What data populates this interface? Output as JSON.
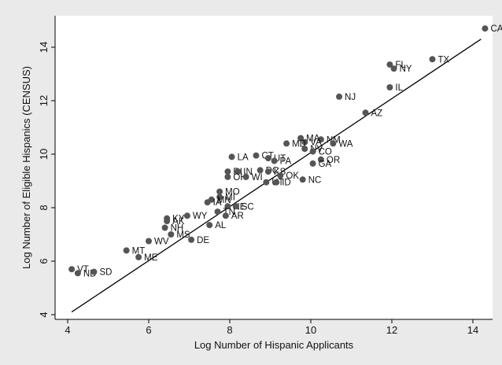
{
  "chart_data": {
    "type": "scatter",
    "xlabel": "Log Number of Hispanic Applicants",
    "ylabel": "Log Number of Eligible Hispanics (CENSUS)",
    "xlim": [
      3.8,
      14.5
    ],
    "ylim": [
      3.6,
      14.9
    ],
    "xticks": [
      4,
      6,
      8,
      10,
      12,
      14
    ],
    "yticks": [
      4,
      6,
      8,
      10,
      12,
      14
    ],
    "grid": false,
    "marker_color": "#555555",
    "fit_line": {
      "x": [
        4.1,
        14.2
      ],
      "y": [
        4.1,
        14.3
      ]
    },
    "points": [
      {
        "label": "CA",
        "x": 14.3,
        "y": 14.7
      },
      {
        "label": "TX",
        "x": 13.0,
        "y": 13.55
      },
      {
        "label": "FL",
        "x": 11.95,
        "y": 13.35
      },
      {
        "label": "NY",
        "x": 12.05,
        "y": 13.2
      },
      {
        "label": "IL",
        "x": 11.95,
        "y": 12.5
      },
      {
        "label": "NJ",
        "x": 10.7,
        "y": 12.15
      },
      {
        "label": "AZ",
        "x": 11.35,
        "y": 11.55
      },
      {
        "label": "MA",
        "x": 9.75,
        "y": 10.6
      },
      {
        "label": "NM",
        "x": 10.25,
        "y": 10.55
      },
      {
        "label": "VA",
        "x": 9.85,
        "y": 10.45
      },
      {
        "label": "MD",
        "x": 9.4,
        "y": 10.4
      },
      {
        "label": "WA",
        "x": 10.55,
        "y": 10.4
      },
      {
        "label": "NV",
        "x": 9.85,
        "y": 10.2
      },
      {
        "label": "CO",
        "x": 10.05,
        "y": 10.1
      },
      {
        "label": "CT",
        "x": 8.65,
        "y": 9.95
      },
      {
        "label": "LA",
        "x": 8.05,
        "y": 9.9
      },
      {
        "label": "UT",
        "x": 8.95,
        "y": 9.85
      },
      {
        "label": "PA",
        "x": 9.1,
        "y": 9.75
      },
      {
        "label": "OR",
        "x": 10.25,
        "y": 9.8
      },
      {
        "label": "GA",
        "x": 10.05,
        "y": 9.65
      },
      {
        "label": "DC",
        "x": 8.75,
        "y": 9.4
      },
      {
        "label": "KS",
        "x": 8.95,
        "y": 9.35
      },
      {
        "label": "RI",
        "x": 7.95,
        "y": 9.35
      },
      {
        "label": "IN",
        "x": 8.2,
        "y": 9.35
      },
      {
        "label": "OK",
        "x": 9.25,
        "y": 9.2
      },
      {
        "label": "OH",
        "x": 7.95,
        "y": 9.15
      },
      {
        "label": "WI",
        "x": 8.4,
        "y": 9.15
      },
      {
        "label": "UT",
        "x": 8.9,
        "y": 8.95
      },
      {
        "label": "ID",
        "x": 9.15,
        "y": 8.95
      },
      {
        "label": "NC",
        "x": 9.8,
        "y": 9.05
      },
      {
        "label": "MO",
        "x": 7.75,
        "y": 8.6
      },
      {
        "label": "MI",
        "x": 7.75,
        "y": 8.4
      },
      {
        "label": "MN",
        "x": 7.55,
        "y": 8.3
      },
      {
        "label": "IA",
        "x": 7.45,
        "y": 8.2
      },
      {
        "label": "NE",
        "x": 7.95,
        "y": 8.05
      },
      {
        "label": "SC",
        "x": 8.15,
        "y": 8.05
      },
      {
        "label": "TN",
        "x": 7.7,
        "y": 7.85
      },
      {
        "label": "AR",
        "x": 7.9,
        "y": 7.7
      },
      {
        "label": "WY",
        "x": 6.95,
        "y": 7.7
      },
      {
        "label": "KY",
        "x": 6.45,
        "y": 7.6
      },
      {
        "label": "AK",
        "x": 6.45,
        "y": 7.5
      },
      {
        "label": "NH",
        "x": 6.4,
        "y": 7.25
      },
      {
        "label": "AL",
        "x": 7.5,
        "y": 7.35
      },
      {
        "label": "MS",
        "x": 6.55,
        "y": 7.0
      },
      {
        "label": "DE",
        "x": 7.05,
        "y": 6.8
      },
      {
        "label": "WV",
        "x": 6.0,
        "y": 6.75
      },
      {
        "label": "MT",
        "x": 5.45,
        "y": 6.4
      },
      {
        "label": "ME",
        "x": 5.75,
        "y": 6.15
      },
      {
        "label": "VT",
        "x": 4.1,
        "y": 5.7
      },
      {
        "label": "ND",
        "x": 4.25,
        "y": 5.55
      },
      {
        "label": "SD",
        "x": 4.65,
        "y": 5.6
      }
    ]
  }
}
